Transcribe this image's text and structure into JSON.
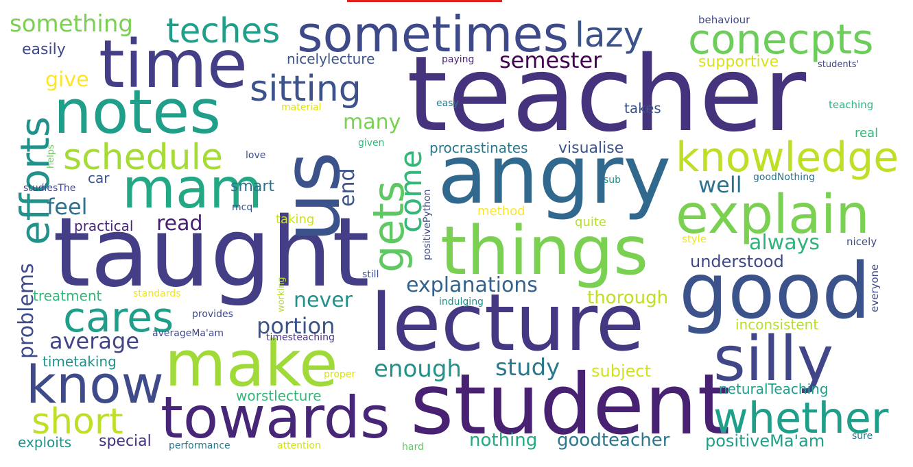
{
  "wordcloud": {
    "bar_color": "#e0201b",
    "words": [
      {
        "id": "teacher",
        "text": "teacher",
        "color": "#46337e"
      },
      {
        "id": "taught",
        "text": "taught",
        "color": "#433e85"
      },
      {
        "id": "student",
        "text": "student",
        "color": "#482173"
      },
      {
        "id": "lecture",
        "text": "lecture",
        "color": "#453781"
      },
      {
        "id": "angry",
        "text": "angry",
        "color": "#31688e"
      },
      {
        "id": "us",
        "text": "us",
        "color": "#3b528b"
      },
      {
        "id": "things",
        "text": "things",
        "color": "#7ad151"
      },
      {
        "id": "good",
        "text": "good",
        "color": "#3b528b"
      },
      {
        "id": "time",
        "text": "time",
        "color": "#433e85"
      },
      {
        "id": "notes",
        "text": "notes",
        "color": "#1f9e89"
      },
      {
        "id": "sometimes",
        "text": "sometimes",
        "color": "#3e4989"
      },
      {
        "id": "make",
        "text": "make",
        "color": "#a0da39"
      },
      {
        "id": "towards",
        "text": "towards",
        "color": "#482677"
      },
      {
        "id": "silly",
        "text": "silly",
        "color": "#404688"
      },
      {
        "id": "explain",
        "text": "explain",
        "color": "#7ad151"
      },
      {
        "id": "mam",
        "text": "mam",
        "color": "#22a884"
      },
      {
        "id": "know",
        "text": "know",
        "color": "#3e4a89"
      },
      {
        "id": "whether",
        "text": "whether",
        "color": "#1f9e89"
      },
      {
        "id": "knowledge",
        "text": "knowledge",
        "color": "#bddf26"
      },
      {
        "id": "conecpts",
        "text": "conecpts",
        "color": "#6ccd5a"
      },
      {
        "id": "efforts",
        "text": "efforts",
        "color": "#21918c"
      },
      {
        "id": "cares",
        "text": "cares",
        "color": "#1f9e89"
      },
      {
        "id": "schedule",
        "text": "schedule",
        "color": "#a5db36"
      },
      {
        "id": "teches",
        "text": "teches",
        "color": "#1f9e89"
      },
      {
        "id": "gets",
        "text": "gets",
        "color": "#5ec962"
      },
      {
        "id": "sitting",
        "text": "sitting",
        "color": "#3b528b"
      },
      {
        "id": "short",
        "text": "short",
        "color": "#bddf26"
      },
      {
        "id": "lazy",
        "text": "lazy",
        "color": "#3b528b"
      },
      {
        "id": "come",
        "text": "come",
        "color": "#35b779"
      },
      {
        "id": "explanations",
        "text": "explanations",
        "color": "#33638d"
      },
      {
        "id": "average",
        "text": "average",
        "color": "#414487"
      },
      {
        "id": "something",
        "text": "something",
        "color": "#7ad151"
      },
      {
        "id": "problems",
        "text": "problems",
        "color": "#3e4a89"
      },
      {
        "id": "enough",
        "text": "enough",
        "color": "#21918c"
      },
      {
        "id": "study",
        "text": "study",
        "color": "#2a788e"
      },
      {
        "id": "portion",
        "text": "portion",
        "color": "#3b528b"
      },
      {
        "id": "semester",
        "text": "semester",
        "color": "#440154"
      },
      {
        "id": "well",
        "text": "well",
        "color": "#2c728e"
      },
      {
        "id": "always",
        "text": "always",
        "color": "#2fb47c"
      },
      {
        "id": "never",
        "text": "never",
        "color": "#21918c"
      },
      {
        "id": "many",
        "text": "many",
        "color": "#7ad151"
      },
      {
        "id": "feel",
        "text": "feel",
        "color": "#2c728e"
      },
      {
        "id": "end",
        "text": "end",
        "color": "#3b528b"
      },
      {
        "id": "read",
        "text": "read",
        "color": "#481f70"
      },
      {
        "id": "thorough",
        "text": "thorough",
        "color": "#bddf26"
      },
      {
        "id": "nothing",
        "text": "nothing",
        "color": "#22a884"
      },
      {
        "id": "goodteacher",
        "text": "goodteacher",
        "color": "#2a788e"
      },
      {
        "id": "positivemaam",
        "text": "positiveMa'am",
        "color": "#1f9e89"
      },
      {
        "id": "understood",
        "text": "understood",
        "color": "#3e4989"
      },
      {
        "id": "give",
        "text": "give",
        "color": "#fde725"
      },
      {
        "id": "visualise",
        "text": "visualise",
        "color": "#3b528b"
      },
      {
        "id": "subject",
        "text": "subject",
        "color": "#d2e21b"
      },
      {
        "id": "easily",
        "text": "easily",
        "color": "#3e4989"
      },
      {
        "id": "procrastinates",
        "text": "procrastinates",
        "color": "#2a788e"
      },
      {
        "id": "nicelylecture",
        "text": "nicelylecture",
        "color": "#3b528b"
      },
      {
        "id": "supportive",
        "text": "supportive",
        "color": "#d8e219"
      },
      {
        "id": "smart",
        "text": "smart",
        "color": "#2c728e"
      },
      {
        "id": "takes",
        "text": "takes",
        "color": "#3b528b"
      },
      {
        "id": "special",
        "text": "special",
        "color": "#46327e"
      },
      {
        "id": "timetaking",
        "text": "timetaking",
        "color": "#21918c"
      },
      {
        "id": "worstlecture",
        "text": "worstlecture",
        "color": "#35b779"
      },
      {
        "id": "neturalteaching",
        "text": "neturalTeaching",
        "color": "#1f9e89"
      },
      {
        "id": "inconsistent",
        "text": "inconsistent",
        "color": "#b5de2b"
      },
      {
        "id": "treatment",
        "text": "treatment",
        "color": "#35b779"
      },
      {
        "id": "practical",
        "text": "practical",
        "color": "#482475"
      },
      {
        "id": "exploits",
        "text": "exploits",
        "color": "#21918c"
      },
      {
        "id": "car",
        "text": "car",
        "color": "#3b528b"
      },
      {
        "id": "quite",
        "text": "quite",
        "color": "#b8de29"
      },
      {
        "id": "taking",
        "text": "taking",
        "color": "#d0e11c"
      },
      {
        "id": "method",
        "text": "method",
        "color": "#fde725"
      },
      {
        "id": "real",
        "text": "real",
        "color": "#35b779"
      },
      {
        "id": "teaching",
        "text": "teaching",
        "color": "#2fb47c"
      },
      {
        "id": "nicely",
        "text": "nicely",
        "color": "#3e4989"
      },
      {
        "id": "style",
        "text": "style",
        "color": "#f1e51d"
      },
      {
        "id": "everyone",
        "text": "everyone",
        "color": "#3e4a89"
      },
      {
        "id": "behaviour",
        "text": "behaviour",
        "color": "#3e4989"
      },
      {
        "id": "students",
        "text": "students'",
        "color": "#404688"
      },
      {
        "id": "paying",
        "text": "paying",
        "color": "#482475"
      },
      {
        "id": "easy",
        "text": "easy",
        "color": "#2a788e"
      },
      {
        "id": "material",
        "text": "material",
        "color": "#d8e219"
      },
      {
        "id": "love",
        "text": "love",
        "color": "#3e4a89"
      },
      {
        "id": "given",
        "text": "given",
        "color": "#35b779"
      },
      {
        "id": "helps",
        "text": "helps",
        "color": "#6ccd5a"
      },
      {
        "id": "studiesthe",
        "text": "studiesThe",
        "color": "#414487"
      },
      {
        "id": "mcq",
        "text": "mcq",
        "color": "#3b528b"
      },
      {
        "id": "sub",
        "text": "sub",
        "color": "#21918c"
      },
      {
        "id": "goodnothing",
        "text": "goodNothing",
        "color": "#2c728e"
      },
      {
        "id": "positivepython",
        "text": "positivePython",
        "color": "#3e4a89"
      },
      {
        "id": "still",
        "text": "still",
        "color": "#3b528b"
      },
      {
        "id": "working",
        "text": "working",
        "color": "#b5de2b"
      },
      {
        "id": "indulging",
        "text": "indulging",
        "color": "#21918c"
      },
      {
        "id": "standards",
        "text": "standards",
        "color": "#f1e51d"
      },
      {
        "id": "provides",
        "text": "provides",
        "color": "#3e4989"
      },
      {
        "id": "averagemaam",
        "text": "averageMa'am",
        "color": "#3e4989"
      },
      {
        "id": "timesteaching",
        "text": "timesteaching",
        "color": "#46327e"
      },
      {
        "id": "proper",
        "text": "proper",
        "color": "#d8e219"
      },
      {
        "id": "performance",
        "text": "performance",
        "color": "#2a788e"
      },
      {
        "id": "attention",
        "text": "attention",
        "color": "#d2e21b"
      },
      {
        "id": "hard",
        "text": "hard",
        "color": "#5ec962"
      },
      {
        "id": "sure",
        "text": "sure",
        "color": "#2a788e"
      }
    ]
  }
}
